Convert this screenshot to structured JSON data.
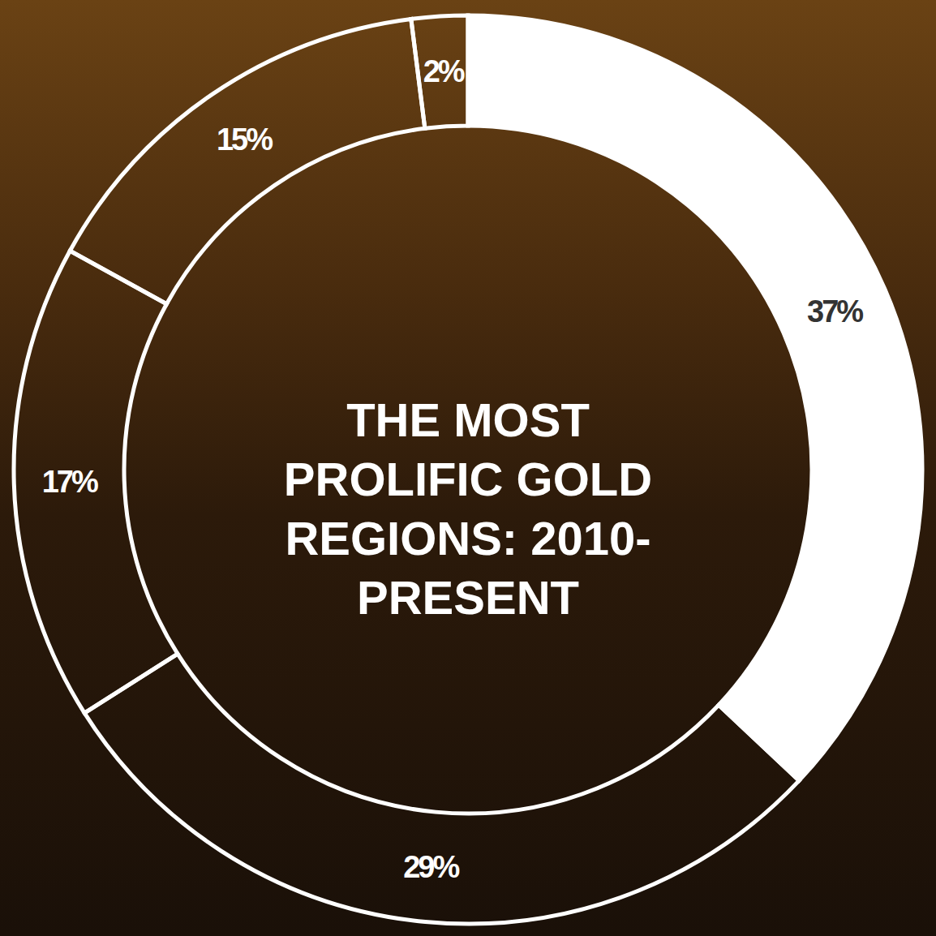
{
  "chart_data": {
    "type": "pie",
    "title": "THE MOST PROLIFIC GOLD REGIONS: 2010-PRESENT",
    "values": [
      37,
      29,
      17,
      15,
      2
    ],
    "value_labels": [
      "37%",
      "29%",
      "17%",
      "15%",
      "2%"
    ],
    "colors": [
      "#ffffff",
      "transparent",
      "transparent",
      "transparent",
      "transparent"
    ],
    "data_labels": true
  }
}
